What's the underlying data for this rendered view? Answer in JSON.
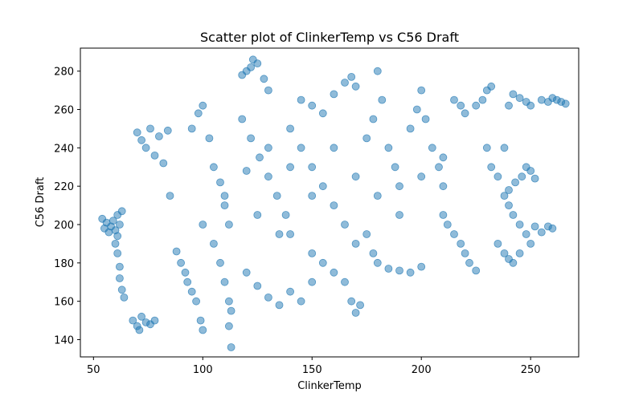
{
  "chart_data": {
    "type": "scatter",
    "title": "Scatter plot of ClinkerTemp vs C56 Draft",
    "xlabel": "ClinkerTemp",
    "ylabel": "C56 Draft",
    "xlim": [
      44,
      272
    ],
    "ylim": [
      131,
      292
    ],
    "xticks": [
      50,
      100,
      150,
      200,
      250
    ],
    "yticks": [
      140,
      160,
      180,
      200,
      220,
      240,
      260,
      280
    ],
    "grid": false,
    "legend": "none",
    "point_color": "#1f77b4",
    "point_alpha": 0.5,
    "series": [
      {
        "points": [
          [
            54,
            203
          ],
          [
            55,
            198
          ],
          [
            56,
            201
          ],
          [
            57,
            196
          ],
          [
            58,
            199
          ],
          [
            59,
            202
          ],
          [
            60,
            197
          ],
          [
            61,
            205
          ],
          [
            62,
            200
          ],
          [
            63,
            207
          ],
          [
            60,
            190
          ],
          [
            61,
            185
          ],
          [
            62,
            178
          ],
          [
            62,
            172
          ],
          [
            63,
            166
          ],
          [
            64,
            162
          ],
          [
            61,
            194
          ],
          [
            68,
            150
          ],
          [
            70,
            147
          ],
          [
            71,
            145
          ],
          [
            72,
            152
          ],
          [
            74,
            149
          ],
          [
            76,
            148
          ],
          [
            78,
            150
          ],
          [
            70,
            248
          ],
          [
            72,
            244
          ],
          [
            74,
            240
          ],
          [
            76,
            250
          ],
          [
            78,
            236
          ],
          [
            80,
            246
          ],
          [
            82,
            232
          ],
          [
            84,
            249
          ],
          [
            85,
            215
          ],
          [
            88,
            186
          ],
          [
            90,
            180
          ],
          [
            92,
            175
          ],
          [
            93,
            170
          ],
          [
            95,
            165
          ],
          [
            97,
            160
          ],
          [
            99,
            150
          ],
          [
            100,
            145
          ],
          [
            95,
            250
          ],
          [
            98,
            258
          ],
          [
            100,
            262
          ],
          [
            103,
            245
          ],
          [
            105,
            230
          ],
          [
            108,
            222
          ],
          [
            110,
            210
          ],
          [
            112,
            200
          ],
          [
            105,
            190
          ],
          [
            108,
            180
          ],
          [
            110,
            170
          ],
          [
            112,
            160
          ],
          [
            113,
            155
          ],
          [
            112,
            147
          ],
          [
            113,
            136
          ],
          [
            118,
            278
          ],
          [
            120,
            280
          ],
          [
            122,
            282
          ],
          [
            123,
            286
          ],
          [
            125,
            284
          ],
          [
            128,
            276
          ],
          [
            130,
            270
          ],
          [
            118,
            255
          ],
          [
            122,
            245
          ],
          [
            126,
            235
          ],
          [
            130,
            225
          ],
          [
            134,
            215
          ],
          [
            138,
            205
          ],
          [
            140,
            195
          ],
          [
            120,
            175
          ],
          [
            125,
            168
          ],
          [
            130,
            162
          ],
          [
            135,
            158
          ],
          [
            140,
            165
          ],
          [
            145,
            160
          ],
          [
            150,
            170
          ],
          [
            140,
            250
          ],
          [
            145,
            240
          ],
          [
            150,
            230
          ],
          [
            155,
            220
          ],
          [
            160,
            210
          ],
          [
            165,
            200
          ],
          [
            170,
            190
          ],
          [
            145,
            265
          ],
          [
            150,
            262
          ],
          [
            155,
            258
          ],
          [
            160,
            268
          ],
          [
            165,
            274
          ],
          [
            168,
            277
          ],
          [
            170,
            272
          ],
          [
            150,
            185
          ],
          [
            155,
            180
          ],
          [
            160,
            175
          ],
          [
            165,
            170
          ],
          [
            168,
            160
          ],
          [
            170,
            154
          ],
          [
            172,
            158
          ],
          [
            175,
            245
          ],
          [
            178,
            255
          ],
          [
            180,
            280
          ],
          [
            182,
            265
          ],
          [
            185,
            240
          ],
          [
            188,
            230
          ],
          [
            190,
            220
          ],
          [
            175,
            195
          ],
          [
            178,
            185
          ],
          [
            180,
            180
          ],
          [
            185,
            177
          ],
          [
            190,
            176
          ],
          [
            195,
            175
          ],
          [
            200,
            178
          ],
          [
            195,
            250
          ],
          [
            198,
            260
          ],
          [
            200,
            270
          ],
          [
            202,
            255
          ],
          [
            205,
            240
          ],
          [
            208,
            230
          ],
          [
            210,
            220
          ],
          [
            210,
            205
          ],
          [
            212,
            200
          ],
          [
            215,
            195
          ],
          [
            218,
            190
          ],
          [
            220,
            185
          ],
          [
            222,
            180
          ],
          [
            225,
            176
          ],
          [
            215,
            265
          ],
          [
            218,
            262
          ],
          [
            220,
            258
          ],
          [
            225,
            262
          ],
          [
            228,
            265
          ],
          [
            230,
            270
          ],
          [
            232,
            272
          ],
          [
            230,
            240
          ],
          [
            232,
            230
          ],
          [
            235,
            225
          ],
          [
            238,
            215
          ],
          [
            240,
            210
          ],
          [
            242,
            205
          ],
          [
            245,
            200
          ],
          [
            235,
            190
          ],
          [
            238,
            185
          ],
          [
            240,
            182
          ],
          [
            242,
            180
          ],
          [
            245,
            185
          ],
          [
            248,
            195
          ],
          [
            250,
            190
          ],
          [
            240,
            262
          ],
          [
            242,
            268
          ],
          [
            245,
            266
          ],
          [
            248,
            264
          ],
          [
            250,
            262
          ],
          [
            255,
            265
          ],
          [
            258,
            264
          ],
          [
            260,
            266
          ],
          [
            262,
            265
          ],
          [
            264,
            264
          ],
          [
            266,
            263
          ],
          [
            252,
            199
          ],
          [
            255,
            196
          ],
          [
            258,
            199
          ],
          [
            260,
            198
          ],
          [
            240,
            218
          ],
          [
            243,
            222
          ],
          [
            246,
            225
          ],
          [
            248,
            230
          ],
          [
            250,
            228
          ],
          [
            252,
            224
          ],
          [
            238,
            240
          ],
          [
            100,
            200
          ],
          [
            110,
            215
          ],
          [
            120,
            228
          ],
          [
            130,
            240
          ],
          [
            140,
            230
          ],
          [
            160,
            240
          ],
          [
            180,
            215
          ],
          [
            190,
            205
          ],
          [
            200,
            225
          ],
          [
            210,
            235
          ],
          [
            170,
            225
          ],
          [
            150,
            215
          ],
          [
            135,
            195
          ],
          [
            125,
            205
          ]
        ]
      }
    ]
  }
}
